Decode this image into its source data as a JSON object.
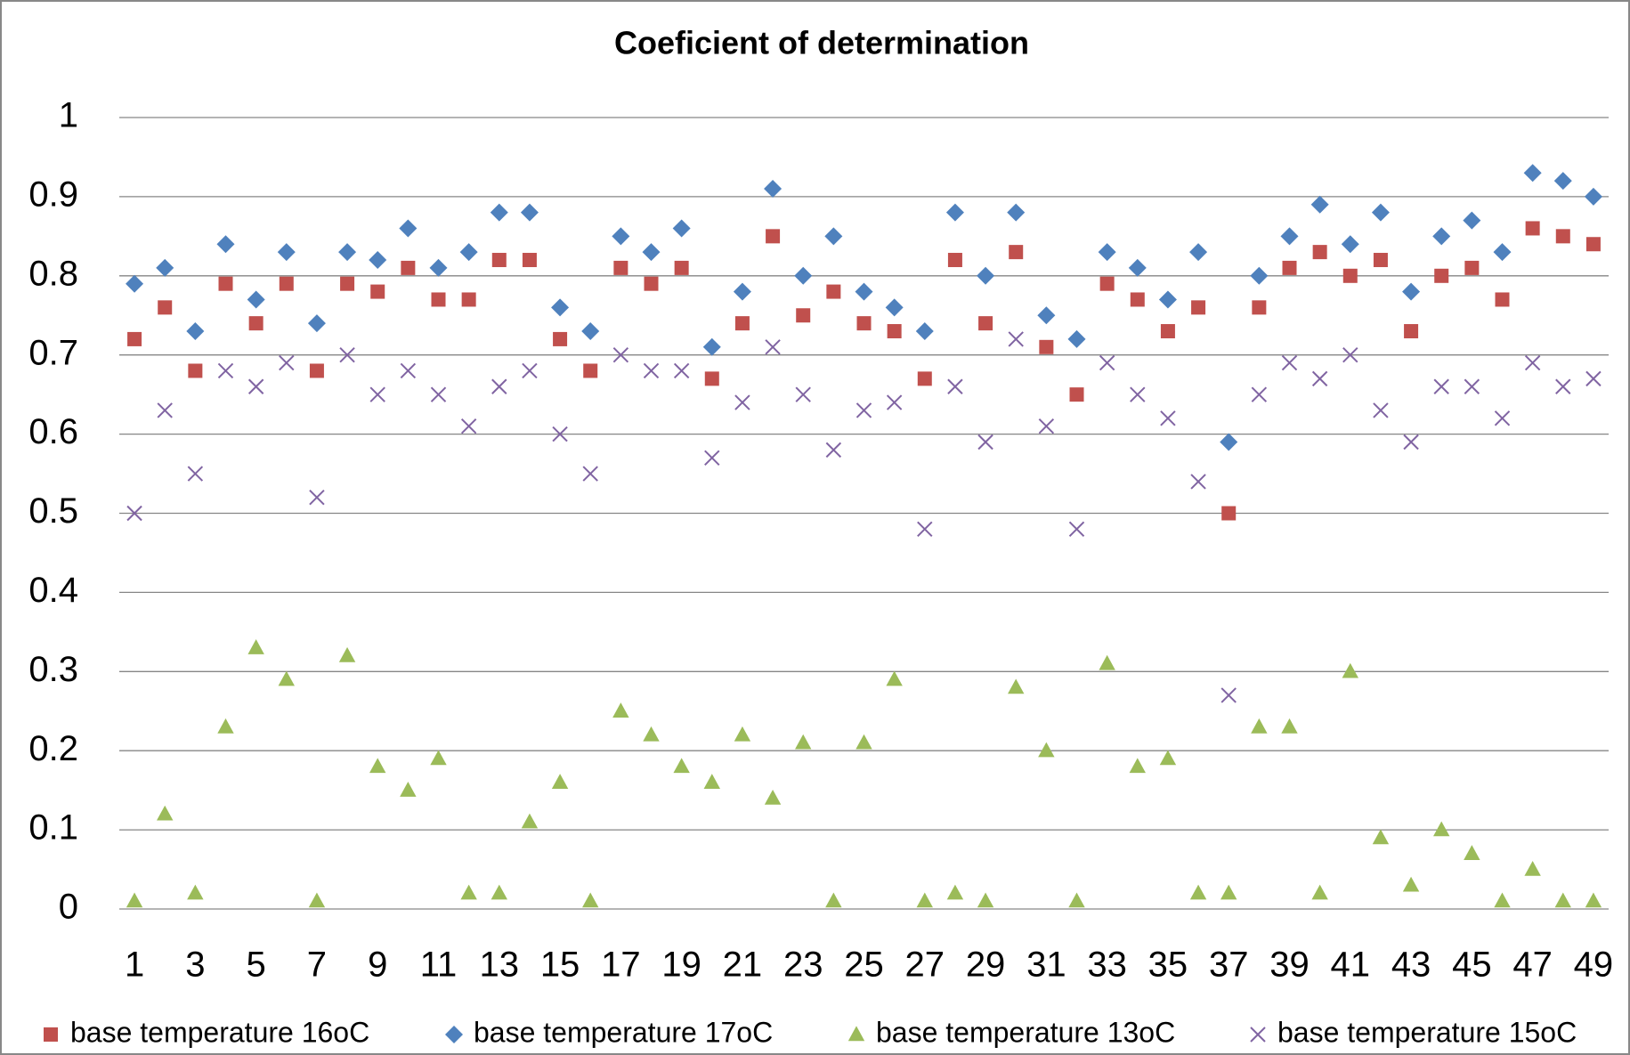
{
  "chart_data": {
    "type": "scatter",
    "title": "Coeficient of determination",
    "x": [
      1,
      2,
      3,
      4,
      5,
      6,
      7,
      8,
      9,
      10,
      11,
      12,
      13,
      14,
      15,
      16,
      17,
      18,
      19,
      20,
      21,
      22,
      23,
      24,
      25,
      26,
      27,
      28,
      29,
      30,
      31,
      32,
      33,
      34,
      35,
      36,
      37,
      38,
      39,
      40,
      41,
      42,
      43,
      44,
      45,
      46,
      47,
      48,
      49
    ],
    "xlim": [
      0.5,
      49.5
    ],
    "xticks": [
      1,
      3,
      5,
      7,
      9,
      11,
      13,
      15,
      17,
      19,
      21,
      23,
      25,
      27,
      29,
      31,
      33,
      35,
      37,
      39,
      41,
      43,
      45,
      47,
      49
    ],
    "ylim": [
      0,
      1
    ],
    "yticks": [
      0,
      0.1,
      0.2,
      0.3,
      0.4,
      0.5,
      0.6,
      0.7,
      0.8,
      0.9,
      1
    ],
    "grid": true,
    "legend": "bottom",
    "series": [
      {
        "name": "base temperature 16oC",
        "color": "#c0504d",
        "marker": "square",
        "values": [
          0.72,
          0.76,
          0.68,
          0.79,
          0.74,
          0.79,
          0.68,
          0.79,
          0.78,
          0.81,
          0.77,
          0.77,
          0.82,
          0.82,
          0.72,
          0.68,
          0.81,
          0.79,
          0.81,
          0.67,
          0.74,
          0.85,
          0.75,
          0.78,
          0.74,
          0.73,
          0.67,
          0.82,
          0.74,
          0.83,
          0.71,
          0.65,
          0.79,
          0.77,
          0.73,
          0.76,
          0.5,
          0.76,
          0.81,
          0.83,
          0.8,
          0.82,
          0.73,
          0.8,
          0.81,
          0.77,
          0.86,
          0.85,
          0.84
        ]
      },
      {
        "name": "base temperature 17oC",
        "color": "#4f81bd",
        "marker": "diamond",
        "values": [
          0.79,
          0.81,
          0.73,
          0.84,
          0.77,
          0.83,
          0.74,
          0.83,
          0.82,
          0.86,
          0.81,
          0.83,
          0.88,
          0.88,
          0.76,
          0.73,
          0.85,
          0.83,
          0.86,
          0.71,
          0.78,
          0.91,
          0.8,
          0.85,
          0.78,
          0.76,
          0.73,
          0.88,
          0.8,
          0.88,
          0.75,
          0.72,
          0.83,
          0.81,
          0.77,
          0.83,
          0.59,
          0.8,
          0.85,
          0.89,
          0.84,
          0.88,
          0.78,
          0.85,
          0.87,
          0.83,
          0.93,
          0.92,
          0.9
        ]
      },
      {
        "name": "base temperature 13oC",
        "color": "#9bbb59",
        "marker": "triangle",
        "values": [
          0.01,
          0.12,
          0.02,
          0.23,
          0.33,
          0.29,
          0.01,
          0.32,
          0.18,
          0.15,
          0.19,
          0.02,
          0.02,
          0.11,
          0.16,
          0.01,
          0.25,
          0.22,
          0.18,
          0.16,
          0.22,
          0.14,
          0.21,
          0.01,
          0.21,
          0.29,
          0.01,
          0.02,
          0.01,
          0.28,
          0.2,
          0.01,
          0.31,
          0.18,
          0.19,
          0.02,
          0.02,
          0.23,
          0.23,
          0.02,
          0.3,
          0.09,
          0.03,
          0.1,
          0.07,
          0.01,
          0.05,
          0.01,
          0.01
        ]
      },
      {
        "name": "base temperature 15oC",
        "color": "#8064a2",
        "marker": "x",
        "values": [
          0.5,
          0.63,
          0.55,
          0.68,
          0.66,
          0.69,
          0.52,
          0.7,
          0.65,
          0.68,
          0.65,
          0.61,
          0.66,
          0.68,
          0.6,
          0.55,
          0.7,
          0.68,
          0.68,
          0.57,
          0.64,
          0.71,
          0.65,
          0.58,
          0.63,
          0.64,
          0.48,
          0.66,
          0.59,
          0.72,
          0.61,
          0.48,
          0.69,
          0.65,
          0.62,
          0.54,
          0.27,
          0.65,
          0.69,
          0.67,
          0.7,
          0.63,
          0.59,
          0.66,
          0.66,
          0.62,
          0.69,
          0.66,
          0.67
        ]
      }
    ]
  }
}
